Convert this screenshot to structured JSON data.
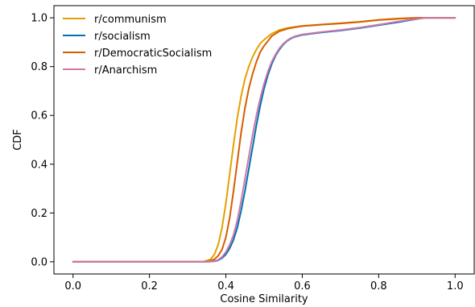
{
  "chart_data": {
    "type": "line",
    "title": "",
    "xlabel": "Cosine Similarity",
    "ylabel": "CDF",
    "xlim": [
      -0.05,
      1.05
    ],
    "ylim": [
      -0.05,
      1.05
    ],
    "xticks": [
      0.0,
      0.2,
      0.4,
      0.6,
      0.8,
      1.0
    ],
    "xtick_labels": [
      "0.0",
      "0.2",
      "0.4",
      "0.6",
      "0.8",
      "1.0"
    ],
    "yticks": [
      0.0,
      0.2,
      0.4,
      0.6,
      0.8,
      1.0
    ],
    "ytick_labels": [
      "0.0",
      "0.2",
      "0.4",
      "0.6",
      "0.8",
      "1.0"
    ],
    "grid": false,
    "legend_position": "upper-left",
    "series": [
      {
        "name": "r/communism",
        "color": "#E69F00",
        "x": [
          0.0,
          0.34,
          0.36,
          0.37,
          0.38,
          0.39,
          0.4,
          0.41,
          0.42,
          0.43,
          0.44,
          0.45,
          0.46,
          0.47,
          0.48,
          0.49,
          0.5,
          0.52,
          0.54,
          0.56,
          0.58,
          0.6,
          0.65,
          0.7,
          0.75,
          0.8,
          0.85,
          0.88,
          0.9,
          0.92,
          1.0
        ],
        "y": [
          0.0,
          0.0,
          0.01,
          0.03,
          0.07,
          0.14,
          0.24,
          0.36,
          0.48,
          0.59,
          0.68,
          0.75,
          0.8,
          0.84,
          0.87,
          0.895,
          0.91,
          0.935,
          0.95,
          0.958,
          0.963,
          0.967,
          0.973,
          0.978,
          0.984,
          0.992,
          0.997,
          0.999,
          1.0,
          1.0,
          1.0
        ]
      },
      {
        "name": "r/socialism",
        "color": "#0072B2",
        "x": [
          0.0,
          0.35,
          0.37,
          0.38,
          0.39,
          0.4,
          0.41,
          0.42,
          0.43,
          0.44,
          0.45,
          0.46,
          0.47,
          0.48,
          0.49,
          0.5,
          0.51,
          0.52,
          0.53,
          0.54,
          0.55,
          0.56,
          0.57,
          0.58,
          0.6,
          0.65,
          0.7,
          0.75,
          0.8,
          0.85,
          0.88,
          0.9,
          0.92,
          1.0
        ],
        "y": [
          0.0,
          0.0,
          0.002,
          0.006,
          0.015,
          0.03,
          0.055,
          0.09,
          0.14,
          0.21,
          0.29,
          0.38,
          0.47,
          0.56,
          0.64,
          0.71,
          0.765,
          0.81,
          0.845,
          0.87,
          0.89,
          0.905,
          0.915,
          0.922,
          0.93,
          0.94,
          0.948,
          0.958,
          0.97,
          0.982,
          0.99,
          0.995,
          1.0,
          1.0
        ]
      },
      {
        "name": "r/DemocraticSocialism",
        "color": "#D55E00",
        "x": [
          0.0,
          0.35,
          0.37,
          0.38,
          0.39,
          0.4,
          0.41,
          0.42,
          0.43,
          0.44,
          0.45,
          0.46,
          0.47,
          0.48,
          0.49,
          0.5,
          0.52,
          0.54,
          0.56,
          0.58,
          0.6,
          0.65,
          0.7,
          0.75,
          0.8,
          0.85,
          0.88,
          0.9,
          0.92,
          1.0
        ],
        "y": [
          0.0,
          0.0,
          0.01,
          0.025,
          0.05,
          0.1,
          0.18,
          0.29,
          0.41,
          0.53,
          0.63,
          0.71,
          0.77,
          0.82,
          0.86,
          0.885,
          0.925,
          0.945,
          0.955,
          0.961,
          0.966,
          0.972,
          0.977,
          0.983,
          0.991,
          0.996,
          0.999,
          1.0,
          1.0,
          1.0
        ]
      },
      {
        "name": "r/Anarchism",
        "color": "#CC79A7",
        "x": [
          0.0,
          0.35,
          0.37,
          0.38,
          0.39,
          0.4,
          0.41,
          0.42,
          0.43,
          0.44,
          0.45,
          0.46,
          0.47,
          0.48,
          0.49,
          0.5,
          0.51,
          0.52,
          0.53,
          0.54,
          0.55,
          0.56,
          0.57,
          0.58,
          0.6,
          0.65,
          0.7,
          0.75,
          0.8,
          0.85,
          0.88,
          0.9,
          0.92,
          1.0
        ],
        "y": [
          0.0,
          0.0,
          0.003,
          0.008,
          0.02,
          0.04,
          0.07,
          0.11,
          0.17,
          0.25,
          0.34,
          0.43,
          0.52,
          0.6,
          0.67,
          0.73,
          0.78,
          0.82,
          0.85,
          0.875,
          0.893,
          0.907,
          0.917,
          0.924,
          0.932,
          0.942,
          0.95,
          0.96,
          0.972,
          0.985,
          0.992,
          0.996,
          1.0,
          1.0
        ]
      }
    ]
  }
}
